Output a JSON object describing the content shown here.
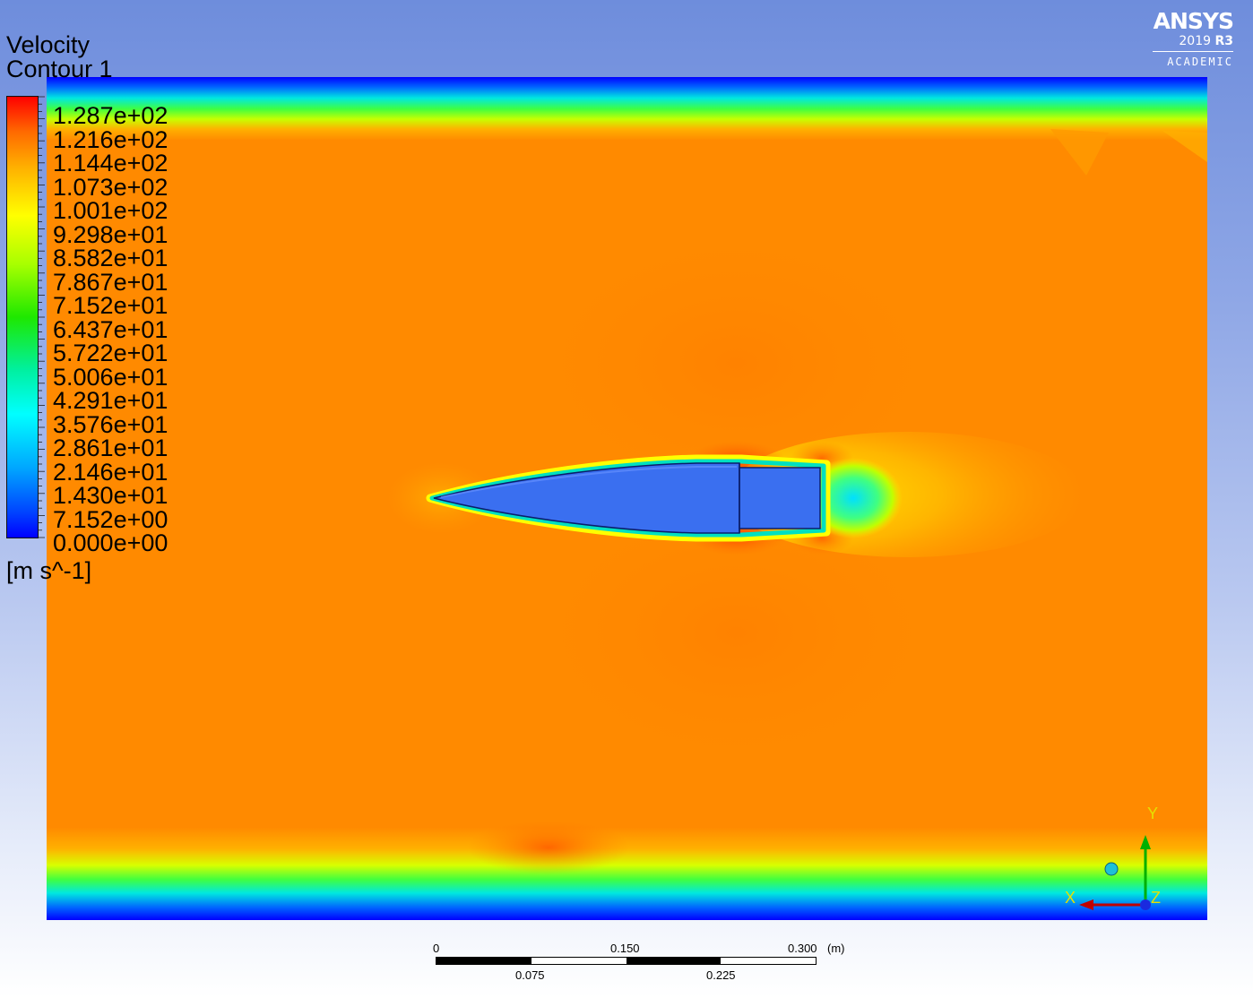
{
  "legend": {
    "title_line1": "Velocity",
    "title_line2": "Contour 1",
    "unit": "[m s^-1]",
    "labels": [
      "1.287e+02",
      "1.216e+02",
      "1.144e+02",
      "1.073e+02",
      "1.001e+02",
      "9.298e+01",
      "8.582e+01",
      "7.867e+01",
      "7.152e+01",
      "6.437e+01",
      "5.722e+01",
      "5.006e+01",
      "4.291e+01",
      "3.576e+01",
      "2.861e+01",
      "2.146e+01",
      "1.430e+01",
      "7.152e+00",
      "0.000e+00"
    ]
  },
  "logo": {
    "brand": "ANSYS",
    "year": "2019",
    "release": "R3",
    "edition": "ACADEMIC"
  },
  "scale": {
    "top_labels": [
      "0",
      "0.150",
      "0.300"
    ],
    "bottom_labels": [
      "0.075",
      "0.225"
    ],
    "unit": "(m)"
  },
  "axes": {
    "x_label": "X",
    "y_label": "Y",
    "z_label": "Z"
  },
  "colors": {
    "freestream": "#ff8c00",
    "body": "#3a6ff0",
    "wall": "#0000ff",
    "background_top": "#6e8ddc"
  }
}
